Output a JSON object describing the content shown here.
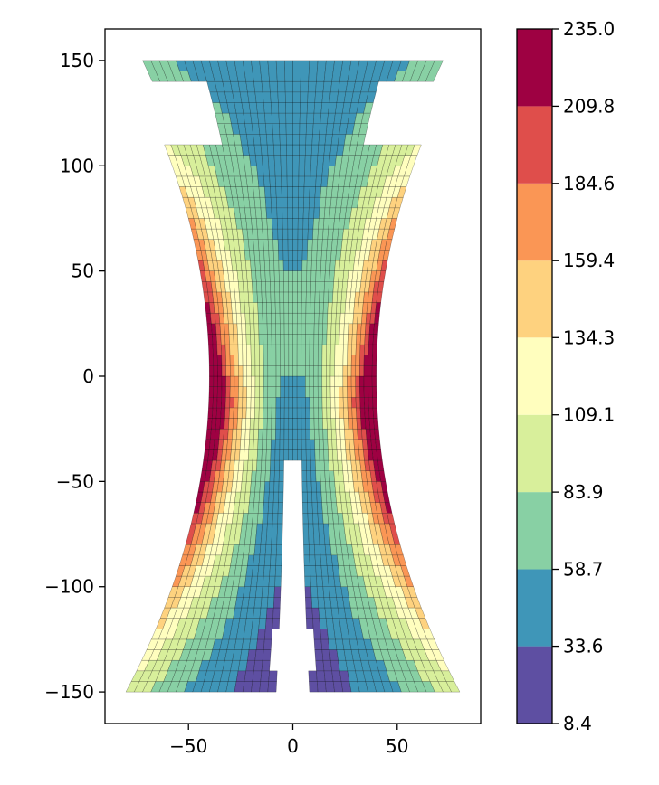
{
  "chart_data": {
    "type": "heatmap",
    "title": "",
    "xlabel": "",
    "ylabel": "",
    "xlim": [
      -90,
      90
    ],
    "ylim": [
      -165,
      165
    ],
    "x_ticks": [
      -50,
      0,
      50
    ],
    "y_ticks": [
      150,
      100,
      50,
      0,
      -50,
      -100,
      -150
    ],
    "x_tick_labels": [
      "−50",
      "0",
      "50"
    ],
    "y_tick_labels": [
      "150",
      "100",
      "50",
      "0",
      "−50",
      "−100",
      "−150"
    ],
    "grid": false,
    "colormap": "Spectral_r",
    "colorbar": {
      "min": 8.4,
      "max": 235.0,
      "levels": [
        8.4,
        33.6,
        58.7,
        83.9,
        109.1,
        134.3,
        159.4,
        184.6,
        209.8,
        235.0
      ],
      "tick_labels": [
        "8.4",
        "33.6",
        "58.7",
        "83.9",
        "109.1",
        "134.3",
        "159.4",
        "184.6",
        "209.8",
        "235.0"
      ],
      "colors": [
        "#5e4fa2",
        "#3f96b8",
        "#88d0a4",
        "#d8ef9b",
        "#fffebe",
        "#fed27f",
        "#fa9655",
        "#df4e4b",
        "#9e0142"
      ]
    },
    "field_description_values": {
      "domain_half_width_at_y150": 80,
      "domain_half_width_at_y0": 40,
      "notch_center_gap_halfwidth": 3,
      "notch_top_y": -42,
      "value_at_outer_edge_waist": 235.0,
      "value_at_centerline_top": 45,
      "value_at_centerline_bottom": 20
    }
  },
  "colors": {
    "axes_frame": "#000000",
    "background": "#ffffff"
  }
}
